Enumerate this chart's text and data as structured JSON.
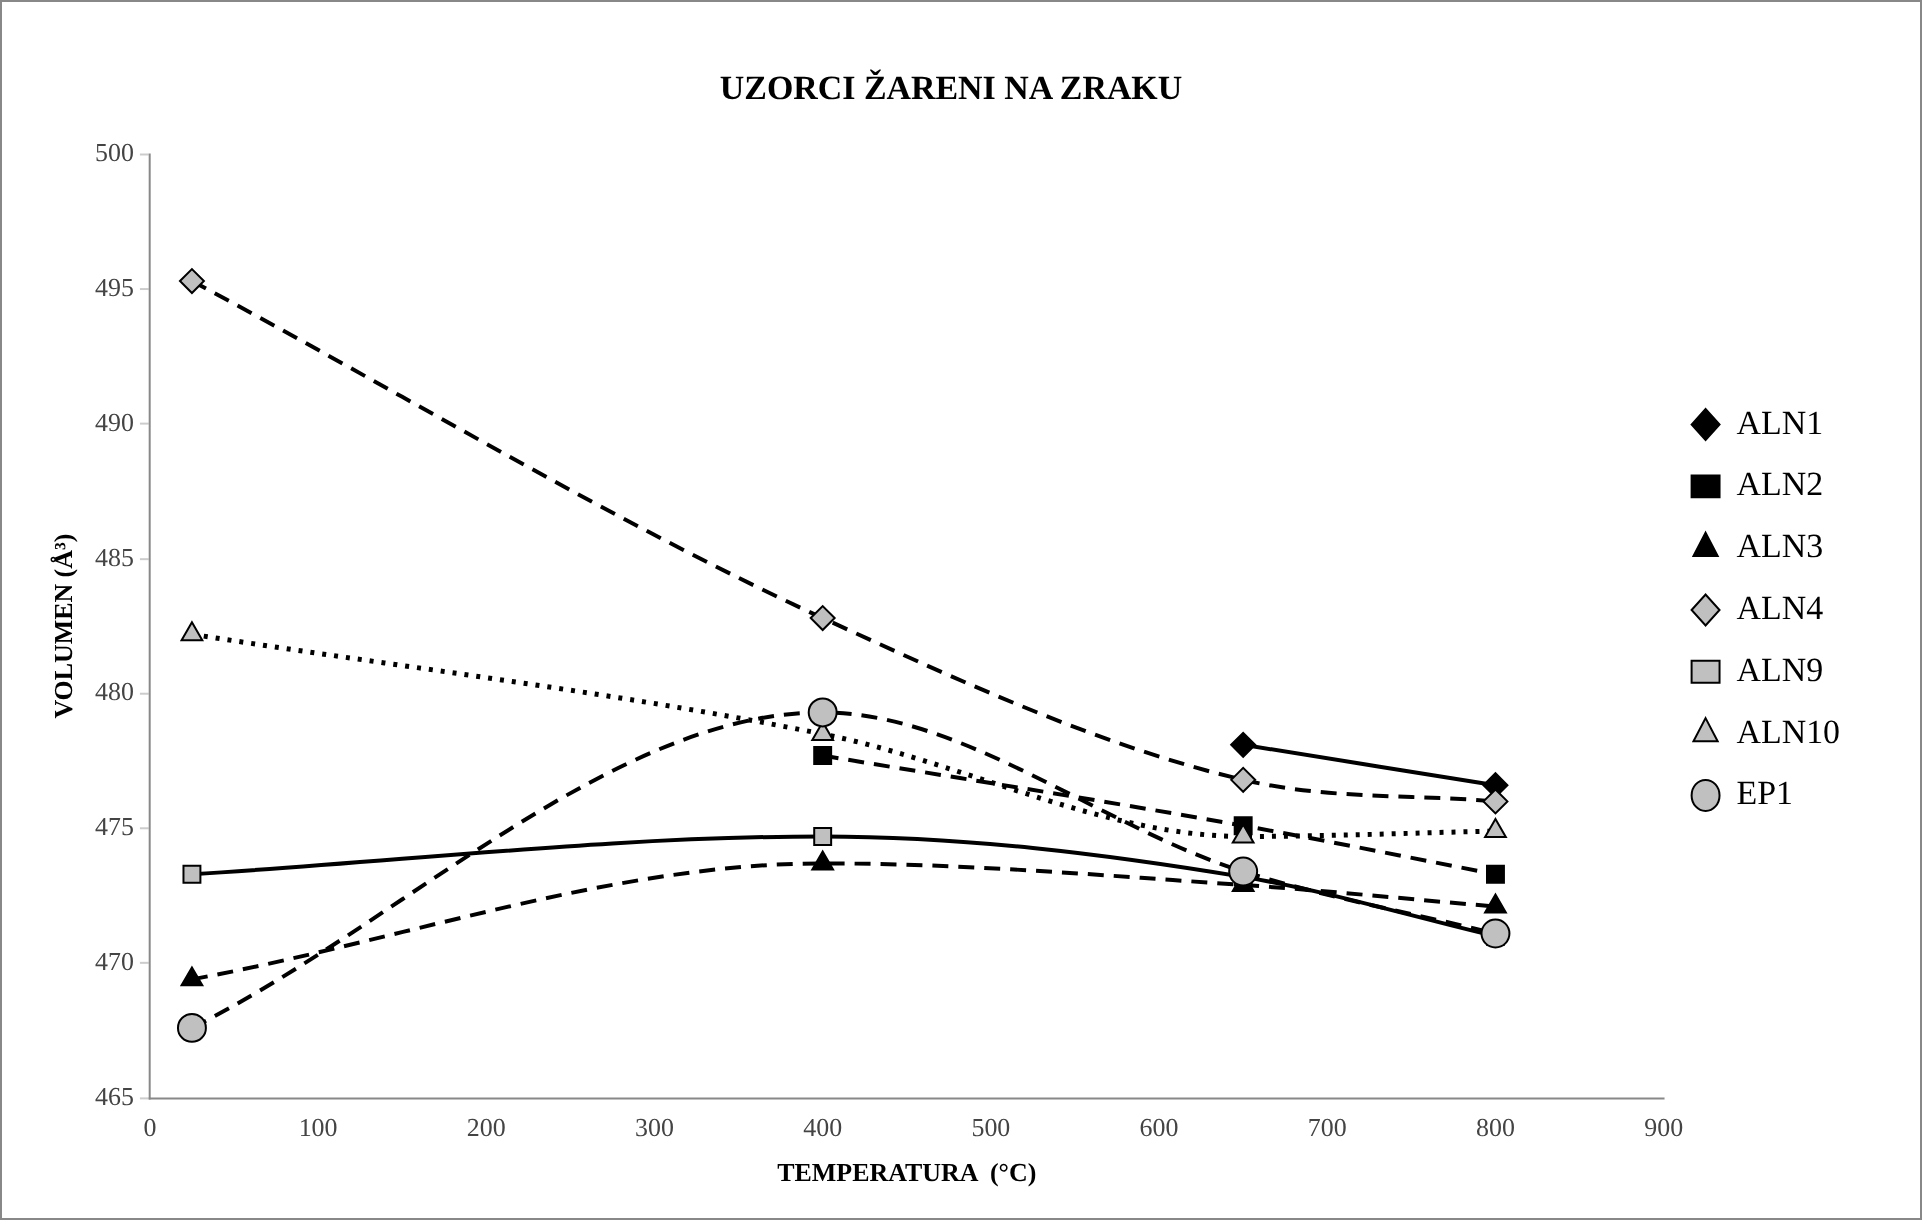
{
  "chart_data": {
    "type": "line",
    "title": "UZORCI ŽARENI NA ZRAKU",
    "xlabel": "TEMPERATURA  (°C)",
    "ylabel": "VOLUMEN (Å³)",
    "x": [
      25,
      400,
      650,
      800
    ],
    "series": [
      {
        "name": "ALN1",
        "color": "#000000",
        "marker": "diamond",
        "line_style": "solid",
        "x": [
          650,
          800
        ],
        "values": [
          478.1,
          476.6
        ]
      },
      {
        "name": "ALN2",
        "color": "#000000",
        "marker": "square",
        "line_style": "dashed",
        "x": [
          400,
          650,
          800
        ],
        "values": [
          477.7,
          475.1,
          473.3
        ]
      },
      {
        "name": "ALN3",
        "color": "#000000",
        "marker": "triangle",
        "line_style": "dashed",
        "values": [
          469.4,
          473.7,
          472.9,
          472.1
        ]
      },
      {
        "name": "ALN4",
        "color": "#c0c0c0",
        "marker": "diamond",
        "line_style": "dashed",
        "values": [
          495.3,
          482.8,
          476.8,
          476.0
        ]
      },
      {
        "name": "ALN9",
        "color": "#c0c0c0",
        "marker": "square",
        "line_style": "solid",
        "values": [
          473.3,
          474.7,
          473.2,
          471.0
        ]
      },
      {
        "name": "ALN10",
        "color": "#c0c0c0",
        "marker": "triangle",
        "line_style": "dotted",
        "values": [
          482.2,
          478.5,
          474.7,
          474.9
        ]
      },
      {
        "name": "EP1",
        "color": "#c0c0c0",
        "marker": "circle",
        "line_style": "dashed",
        "values": [
          467.6,
          479.3,
          473.4,
          471.1
        ]
      }
    ],
    "xlim": [
      0,
      900
    ],
    "xticks": [
      0,
      100,
      200,
      300,
      400,
      500,
      600,
      700,
      800,
      900
    ],
    "ylim": [
      465,
      500
    ],
    "yticks": [
      465,
      470,
      475,
      480,
      485,
      490,
      495,
      500
    ],
    "grid": false,
    "legend": "right"
  }
}
